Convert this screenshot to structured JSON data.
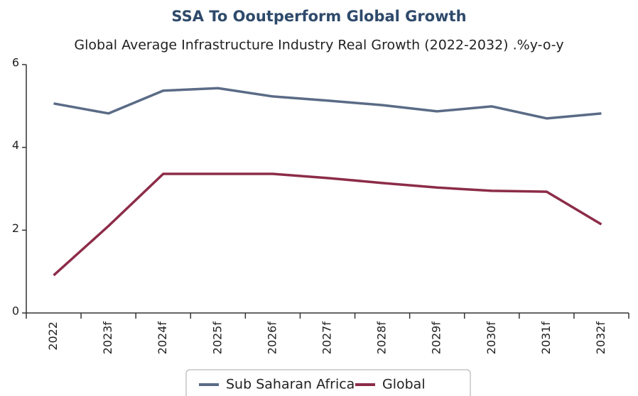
{
  "chart_data": {
    "type": "line",
    "title": "SSA To Ooutperform Global Growth",
    "subtitle": "Global Average Infrastructure Industry Real Growth (2022-2032) .%y-o-y",
    "categories": [
      "2022",
      "2023f",
      "2024f",
      "2025f",
      "2026f",
      "2027f",
      "2028f",
      "2029f",
      "2030f",
      "2031f",
      "2032f"
    ],
    "series": [
      {
        "name": "Sub Saharan Africa",
        "color": "#5a6b86",
        "values": [
          5.06,
          4.82,
          5.37,
          5.43,
          5.23,
          5.13,
          5.02,
          4.87,
          4.99,
          4.7,
          4.82
        ]
      },
      {
        "name": "Global",
        "color": "#8c2c48",
        "values": [
          0.91,
          2.1,
          3.36,
          3.36,
          3.36,
          3.26,
          3.14,
          3.03,
          2.95,
          2.93,
          2.14
        ]
      }
    ],
    "ylim": [
      0,
      6
    ],
    "yticks": [
      0,
      2,
      4,
      6
    ]
  }
}
